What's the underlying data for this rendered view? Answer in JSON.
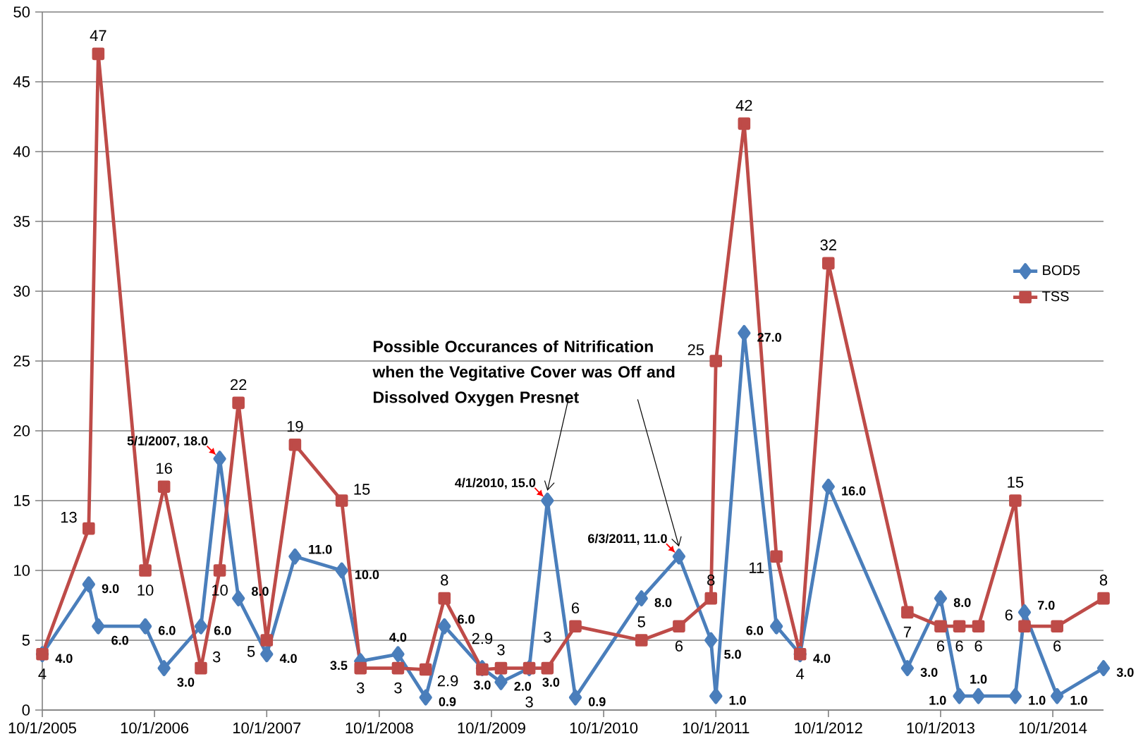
{
  "chart_data": {
    "type": "line",
    "x": [
      "2005-10-01",
      "2006-03-01",
      "2006-04-01",
      "2006-09-01",
      "2006-11-01",
      "2007-03-01",
      "2007-05-01",
      "2007-07-01",
      "2007-10-01",
      "2008-01-01",
      "2008-06-01",
      "2008-08-01",
      "2008-12-01",
      "2009-03-01",
      "2009-05-01",
      "2009-09-01",
      "2009-11-01",
      "2010-02-01",
      "2010-04-01",
      "2010-07-01",
      "2011-02-01",
      "2011-06-03",
      "2011-09-15",
      "2011-10-01",
      "2012-01-01",
      "2012-04-15",
      "2012-07-01",
      "2012-10-01",
      "2013-06-15",
      "2013-10-01",
      "2013-12-01",
      "2014-02-01",
      "2014-06-01",
      "2014-07-01",
      "2014-10-15",
      "2015-03-15"
    ],
    "series": [
      {
        "name": "BOD5",
        "color": "#4a7ebb",
        "marker": "diamond",
        "values": [
          4.0,
          9.0,
          6.0,
          6.0,
          3.0,
          6.0,
          18.0,
          8.0,
          4.0,
          11.0,
          10.0,
          3.5,
          4.0,
          0.9,
          6.0,
          3.0,
          2.0,
          3.0,
          15.0,
          0.9,
          8.0,
          11.0,
          5.0,
          1.0,
          27.0,
          6.0,
          4.0,
          16.0,
          3.0,
          8.0,
          1.0,
          1.0,
          1.0,
          7.0,
          1.0,
          3.0
        ],
        "value_labels": [
          "4.0",
          "9.0",
          "6.0",
          "6.0",
          "3.0",
          "6.0",
          null,
          "8.0",
          "4.0",
          "11.0",
          "10.0",
          "3.5",
          "4.0",
          "0.9",
          "6.0",
          "3.0",
          "2.0",
          "3.0",
          null,
          "0.9",
          "8.0",
          null,
          "5.0",
          "1.0",
          "27.0",
          "6.0",
          "4.0",
          "16.0",
          "3.0",
          "8.0",
          "1.0",
          "1.0",
          "1.0",
          "7.0",
          "1.0",
          "3.0"
        ]
      },
      {
        "name": "TSS",
        "color": "#be4b48",
        "marker": "square",
        "values": [
          4,
          13,
          47,
          10,
          16,
          3,
          10,
          22,
          5,
          19,
          15,
          3,
          3,
          2.9,
          8,
          2.9,
          3,
          3,
          3,
          6,
          5,
          6,
          8,
          25,
          42,
          11,
          4,
          32,
          7,
          6,
          6,
          6,
          15,
          6,
          6,
          8
        ],
        "value_labels": [
          "4",
          "13",
          "47",
          "10",
          "16",
          "3",
          "10",
          "22",
          "5",
          "19",
          "15",
          "3",
          "3",
          "2.9",
          "8",
          "2.9",
          "3",
          "3",
          "3",
          "6",
          "5",
          "6",
          "8",
          "25",
          "42",
          "11",
          "4",
          "32",
          "7",
          "6",
          "6",
          "6",
          "15",
          "6",
          "6",
          "8"
        ]
      }
    ],
    "xlim": [
      "2005-10-01",
      "2015-03-15"
    ],
    "xticks": [
      {
        "value": "2005-10-01",
        "label": "10/1/2005"
      },
      {
        "value": "2006-10-01",
        "label": "10/1/2006"
      },
      {
        "value": "2007-10-01",
        "label": "10/1/2007"
      },
      {
        "value": "2008-10-01",
        "label": "10/1/2008"
      },
      {
        "value": "2009-10-01",
        "label": "10/1/2009"
      },
      {
        "value": "2010-10-01",
        "label": "10/1/2010"
      },
      {
        "value": "2011-10-01",
        "label": "10/1/2011"
      },
      {
        "value": "2012-10-01",
        "label": "10/1/2012"
      },
      {
        "value": "2013-10-01",
        "label": "10/1/2013"
      },
      {
        "value": "2014-10-01",
        "label": "10/1/2014"
      }
    ],
    "ylim": [
      0,
      50
    ],
    "yticks": [
      0,
      5,
      10,
      15,
      20,
      25,
      30,
      35,
      40,
      45,
      50
    ],
    "grid": "y",
    "legend": "right",
    "line_style": "solid",
    "annotations": [
      {
        "text": "5/1/2007, 18.0",
        "x": "2007-05-01",
        "y": 18.0
      },
      {
        "text": "4/1/2010, 15.0",
        "x": "2010-04-01",
        "y": 15.0
      },
      {
        "text": "6/3/2011, 11.0",
        "x": "2011-06-03",
        "y": 11.0
      },
      "**Possible Occurances of Nitrification when the Vegitative Cover was Off and Dissolved Oxygen Presnet**"
    ]
  }
}
